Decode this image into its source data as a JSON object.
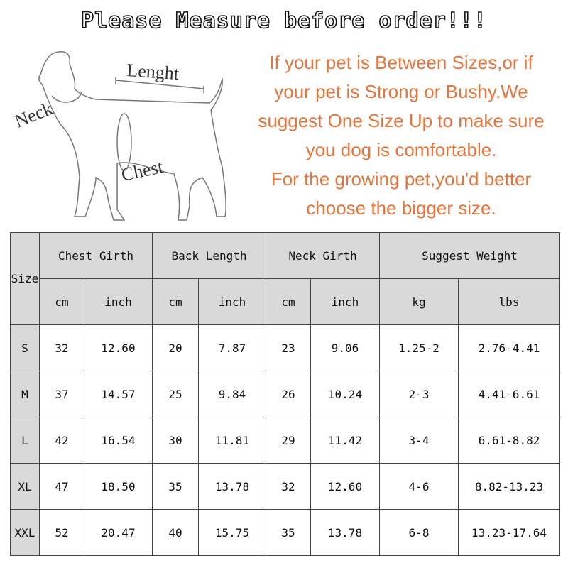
{
  "title": "Please Measure before order!!!",
  "diagram": {
    "labels": {
      "length": "Lenght",
      "neck": "Neck",
      "chest": "Chest"
    }
  },
  "advice": [
    "If your pet is Between Sizes,or if",
    "your pet is Strong or Bushy.We",
    "suggest One Size Up to make sure",
    "you dog is comfortable.",
    "For the growing pet,you'd better",
    "choose the bigger size."
  ],
  "colors": {
    "advice_text": "#e8743b",
    "header_bg": "#d9d9d9"
  },
  "table": {
    "size_header": "Size",
    "groups": [
      "Chest Girth",
      "Back Length",
      "Neck Girth",
      "Suggest Weight"
    ],
    "units": [
      "cm",
      "inch",
      "cm",
      "inch",
      "cm",
      "inch",
      "kg",
      "lbs"
    ],
    "rows": [
      {
        "size": "S",
        "values": [
          "32",
          "12.60",
          "20",
          "7.87",
          "23",
          "9.06",
          "1.25-2",
          "2.76-4.41"
        ]
      },
      {
        "size": "M",
        "values": [
          "37",
          "14.57",
          "25",
          "9.84",
          "26",
          "10.24",
          "2-3",
          "4.41-6.61"
        ]
      },
      {
        "size": "L",
        "values": [
          "42",
          "16.54",
          "30",
          "11.81",
          "29",
          "11.42",
          "3-4",
          "6.61-8.82"
        ]
      },
      {
        "size": "XL",
        "values": [
          "47",
          "18.50",
          "35",
          "13.78",
          "32",
          "12.60",
          "4-6",
          "8.82-13.23"
        ]
      },
      {
        "size": "XXL",
        "values": [
          "52",
          "20.47",
          "40",
          "15.75",
          "35",
          "13.78",
          "6-8",
          "13.23-17.64"
        ]
      }
    ]
  }
}
